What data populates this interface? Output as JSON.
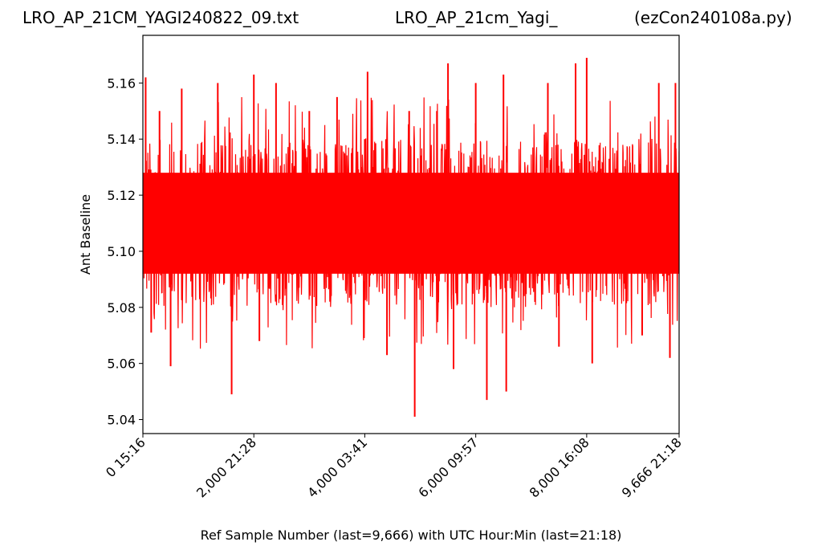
{
  "titles": {
    "left": "LRO_AP_21CM_YAGI240822_09.txt",
    "center": "LRO_AP_21cm_Yagi_",
    "right": "(ezCon240108a.py)"
  },
  "chart_data": {
    "type": "line",
    "xlabel": "Ref Sample Number (last=9,666) with UTC Hour:Min (last=21:18)",
    "ylabel": "Ant Baseline",
    "xlim": [
      0,
      9666
    ],
    "ylim": [
      5.035,
      5.177
    ],
    "xticks": [
      {
        "value": 0,
        "label": "0  15:16"
      },
      {
        "value": 2000,
        "label": "2,000  21:28"
      },
      {
        "value": 4000,
        "label": "4,000  03:41"
      },
      {
        "value": 6000,
        "label": "6,000  09:57"
      },
      {
        "value": 8000,
        "label": "8,000  16:08"
      },
      {
        "value": 9666,
        "label": "9,666  21:18"
      }
    ],
    "yticks": [
      {
        "value": 5.04,
        "label": "5.04"
      },
      {
        "value": 5.06,
        "label": "5.06"
      },
      {
        "value": 5.08,
        "label": "5.08"
      },
      {
        "value": 5.1,
        "label": "5.10"
      },
      {
        "value": 5.12,
        "label": "5.12"
      },
      {
        "value": 5.14,
        "label": "5.14"
      },
      {
        "value": 5.16,
        "label": "5.16"
      }
    ],
    "grid": false,
    "series": [
      {
        "color": "#ff0000",
        "x": [
          0,
          50,
          150,
          300,
          500,
          700,
          1000,
          1350,
          1600,
          1650,
          1700,
          2000,
          2100,
          2400,
          2800,
          3000,
          3500,
          3900,
          4000,
          4050,
          4400,
          4800,
          4900,
          5000,
          5300,
          5500,
          5600,
          5700,
          6000,
          6200,
          6400,
          6500,
          6550,
          7000,
          7300,
          7500,
          7800,
          7900,
          8000,
          8100,
          8500,
          9000,
          9300,
          9500,
          9600,
          9666
        ],
        "y": [
          5.11,
          5.162,
          5.071,
          5.15,
          5.059,
          5.158,
          5.101,
          5.16,
          5.049,
          5.12,
          5.099,
          5.163,
          5.068,
          5.16,
          5.102,
          5.15,
          5.155,
          5.108,
          5.14,
          5.164,
          5.063,
          5.15,
          5.041,
          5.101,
          5.15,
          5.167,
          5.058,
          5.109,
          5.16,
          5.047,
          5.101,
          5.163,
          5.05,
          5.112,
          5.16,
          5.066,
          5.167,
          5.099,
          5.169,
          5.06,
          5.112,
          5.07,
          5.16,
          5.062,
          5.16,
          5.112
        ],
        "band_low": 5.08,
        "band_high": 5.14
      }
    ]
  }
}
